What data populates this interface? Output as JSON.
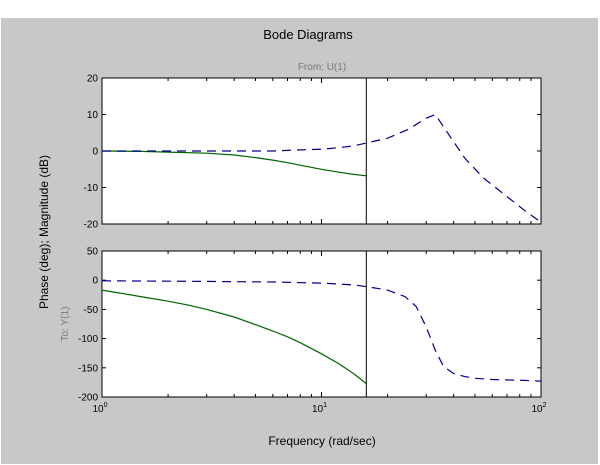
{
  "figure": {
    "title": "Bode Diagrams",
    "subtitle": "From: U(1)",
    "ylabel": "Phase (deg); Magnitude (dB)",
    "output_label": "To: Y(1)",
    "xlabel": "Frequency (rad/sec)"
  },
  "colors": {
    "frame_bg": "#c8c8c8",
    "axes_bg": "#ffffff",
    "solid_series": "#006400",
    "dashed_series": "#00008b",
    "cursor": "#000000",
    "muted_text": "#7a7a7a"
  },
  "chart_data": [
    {
      "type": "line",
      "panel": "magnitude",
      "xscale": "log",
      "xlim": [
        1,
        100
      ],
      "ylim": [
        -20,
        20
      ],
      "yticks": [
        -20,
        -10,
        0,
        10,
        20
      ],
      "x_tick_labels": [
        {
          "base": "10",
          "exp": "0"
        },
        {
          "base": "10",
          "exp": "1"
        },
        {
          "base": "10",
          "exp": "2"
        }
      ],
      "vertical_marker_x": 16,
      "series": [
        {
          "style": "solid",
          "x": [
            1,
            1.5,
            2,
            3,
            4,
            5,
            6,
            7,
            8,
            10,
            12,
            14,
            16
          ],
          "y": [
            0,
            -0.1,
            -0.3,
            -0.6,
            -1.1,
            -1.8,
            -2.5,
            -3.2,
            -3.9,
            -5.0,
            -5.8,
            -6.4,
            -6.8
          ]
        },
        {
          "style": "dashed",
          "x": [
            1,
            2,
            4,
            6,
            8,
            10,
            12,
            14,
            16,
            20,
            25,
            30,
            33,
            38,
            45,
            55,
            70,
            85,
            100
          ],
          "y": [
            0,
            0,
            0,
            0,
            0.3,
            0.5,
            0.9,
            1.4,
            2.2,
            3.5,
            6.0,
            9.0,
            10.0,
            4.5,
            -2.0,
            -7.5,
            -12.5,
            -16.5,
            -19.5
          ]
        }
      ]
    },
    {
      "type": "line",
      "panel": "phase",
      "xscale": "log",
      "xlim": [
        1,
        100
      ],
      "ylim": [
        -200,
        50
      ],
      "yticks": [
        -200,
        -150,
        -100,
        -50,
        0,
        50
      ],
      "x_tick_labels": [
        {
          "base": "10",
          "exp": "0"
        },
        {
          "base": "10",
          "exp": "1"
        },
        {
          "base": "10",
          "exp": "2"
        }
      ],
      "vertical_marker_x": 16,
      "series": [
        {
          "style": "solid",
          "x": [
            1,
            1.2,
            1.5,
            2,
            2.5,
            3,
            4,
            5,
            6,
            7,
            8,
            10,
            12,
            14,
            16
          ],
          "y": [
            -17,
            -22,
            -28,
            -36,
            -43,
            -50,
            -63,
            -76,
            -87,
            -97,
            -107,
            -126,
            -143,
            -160,
            -177
          ]
        },
        {
          "style": "dashed",
          "x": [
            1,
            3,
            6,
            10,
            14,
            16,
            20,
            24,
            27,
            30,
            33,
            36,
            40,
            45,
            50,
            60,
            75,
            90,
            100
          ],
          "y": [
            -1,
            -2,
            -3,
            -5,
            -8,
            -11,
            -17,
            -28,
            -45,
            -80,
            -120,
            -148,
            -160,
            -165,
            -168,
            -170,
            -171,
            -172,
            -173
          ]
        }
      ]
    }
  ]
}
